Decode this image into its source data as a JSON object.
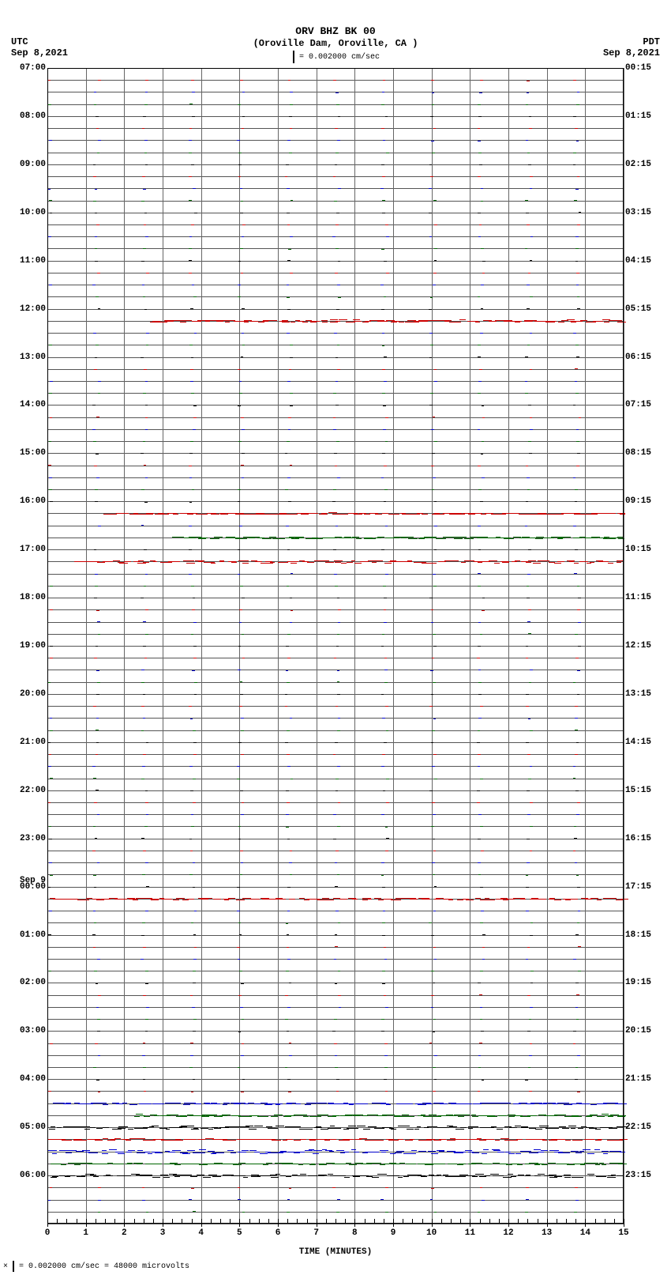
{
  "header": {
    "station": "ORV BHZ BK 00",
    "location": "(Oroville Dam, Oroville, CA )",
    "scale_text": "= 0.002000 cm/sec"
  },
  "tz_left": {
    "zone": "UTC",
    "date": "Sep 8,2021"
  },
  "tz_right": {
    "zone": "PDT",
    "date": "Sep 8,2021"
  },
  "plot": {
    "type": "helicorder",
    "background_color": "#ffffff",
    "gridline_color": "#666666",
    "n_lines": 96,
    "line_spacing_minutes": 15,
    "x_axis": {
      "label": "TIME (MINUTES)",
      "min": 0,
      "max": 15,
      "major_ticks": [
        0,
        1,
        2,
        3,
        4,
        5,
        6,
        7,
        8,
        9,
        10,
        11,
        12,
        13,
        14,
        15
      ],
      "minor_per_major": 4
    },
    "left_hour_labels": [
      {
        "line": 0,
        "text": "07:00"
      },
      {
        "line": 4,
        "text": "08:00"
      },
      {
        "line": 8,
        "text": "09:00"
      },
      {
        "line": 12,
        "text": "10:00"
      },
      {
        "line": 16,
        "text": "11:00"
      },
      {
        "line": 20,
        "text": "12:00"
      },
      {
        "line": 24,
        "text": "13:00"
      },
      {
        "line": 28,
        "text": "14:00"
      },
      {
        "line": 32,
        "text": "15:00"
      },
      {
        "line": 36,
        "text": "16:00"
      },
      {
        "line": 40,
        "text": "17:00"
      },
      {
        "line": 44,
        "text": "18:00"
      },
      {
        "line": 48,
        "text": "19:00"
      },
      {
        "line": 52,
        "text": "20:00"
      },
      {
        "line": 56,
        "text": "21:00"
      },
      {
        "line": 60,
        "text": "22:00"
      },
      {
        "line": 64,
        "text": "23:00"
      },
      {
        "line": 68,
        "text": "00:00",
        "date_above": "Sep 9"
      },
      {
        "line": 72,
        "text": "01:00"
      },
      {
        "line": 76,
        "text": "02:00"
      },
      {
        "line": 80,
        "text": "03:00"
      },
      {
        "line": 84,
        "text": "04:00"
      },
      {
        "line": 88,
        "text": "05:00"
      },
      {
        "line": 92,
        "text": "06:00"
      }
    ],
    "right_hour_labels": [
      {
        "line": 0,
        "text": "00:15"
      },
      {
        "line": 4,
        "text": "01:15"
      },
      {
        "line": 8,
        "text": "02:15"
      },
      {
        "line": 12,
        "text": "03:15"
      },
      {
        "line": 16,
        "text": "04:15"
      },
      {
        "line": 20,
        "text": "05:15"
      },
      {
        "line": 24,
        "text": "06:15"
      },
      {
        "line": 28,
        "text": "07:15"
      },
      {
        "line": 32,
        "text": "08:15"
      },
      {
        "line": 36,
        "text": "09:15"
      },
      {
        "line": 40,
        "text": "10:15"
      },
      {
        "line": 44,
        "text": "11:15"
      },
      {
        "line": 48,
        "text": "12:15"
      },
      {
        "line": 52,
        "text": "13:15"
      },
      {
        "line": 56,
        "text": "14:15"
      },
      {
        "line": 60,
        "text": "15:15"
      },
      {
        "line": 64,
        "text": "16:15"
      },
      {
        "line": 68,
        "text": "17:15"
      },
      {
        "line": 72,
        "text": "18:15"
      },
      {
        "line": 76,
        "text": "19:15"
      },
      {
        "line": 80,
        "text": "20:15"
      },
      {
        "line": 84,
        "text": "21:15"
      },
      {
        "line": 88,
        "text": "22:15"
      },
      {
        "line": 92,
        "text": "23:15"
      }
    ],
    "line_colors": [
      "#000000",
      "#cc0000",
      "#0000cc",
      "#006600"
    ],
    "activity_lines": {
      "21": {
        "color": "#cc0000",
        "amplitude": 1.5,
        "start": 0.18,
        "end": 1.0
      },
      "37": {
        "color": "#cc0000",
        "amplitude": 1.0,
        "start": 0.1,
        "end": 1.0
      },
      "39": {
        "color": "#006600",
        "amplitude": 1.2,
        "start": 0.22,
        "end": 1.0
      },
      "41": {
        "color": "#cc0000",
        "amplitude": 1.8,
        "start": 0.05,
        "end": 1.0
      },
      "69": {
        "color": "#cc0000",
        "amplitude": 1.0,
        "start": 0.0,
        "end": 1.0
      },
      "86": {
        "color": "#0000cc",
        "amplitude": 1.0,
        "start": 0.0,
        "end": 1.0
      },
      "87": {
        "color": "#006600",
        "amplitude": 1.5,
        "start": 0.15,
        "end": 1.0
      },
      "88": {
        "color": "#000000",
        "amplitude": 2.0,
        "start": 0.0,
        "end": 1.0
      },
      "89": {
        "color": "#cc0000",
        "amplitude": 1.0,
        "start": 0.0,
        "end": 1.0
      },
      "90": {
        "color": "#0000cc",
        "amplitude": 2.5,
        "start": 0.0,
        "end": 1.0
      },
      "91": {
        "color": "#006600",
        "amplitude": 1.0,
        "start": 0.0,
        "end": 1.0
      },
      "92": {
        "color": "#000000",
        "amplitude": 2.0,
        "start": 0.0,
        "end": 1.0
      }
    }
  },
  "footer": {
    "text": "= 0.002000 cm/sec =   48000 microvolts"
  }
}
